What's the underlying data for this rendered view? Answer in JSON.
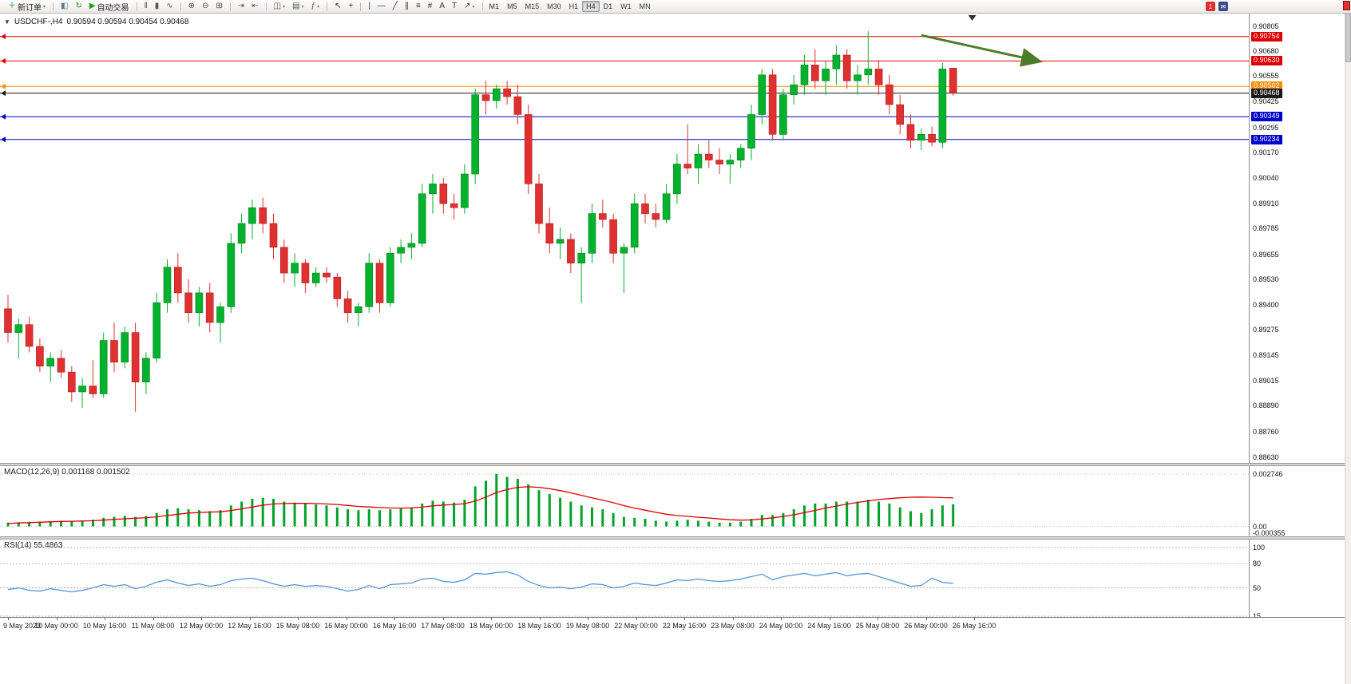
{
  "toolbar": {
    "icon_groups": [
      {
        "items": [
          {
            "name": "new-order-button",
            "glyph": "＋",
            "color": "#18a018",
            "label": "新订单",
            "dropdown": true
          }
        ]
      },
      {
        "items": [
          {
            "name": "market-watch-icon",
            "glyph": "◧",
            "color": "#667788"
          },
          {
            "name": "strategy-tester-icon",
            "glyph": "↻",
            "color": "#1f8f1f"
          },
          {
            "name": "autotrading-button",
            "glyph": "▶",
            "color": "#18a018",
            "label": "自动交易"
          }
        ]
      },
      {
        "items": [
          {
            "name": "bar-chart-button",
            "glyph": "‖",
            "color": "#555555"
          },
          {
            "name": "candlestick-chart-button",
            "glyph": "▮",
            "color": "#555555"
          },
          {
            "name": "line-chart-button",
            "glyph": "∿",
            "color": "#555555"
          }
        ]
      },
      {
        "items": [
          {
            "name": "zoom-in-button",
            "glyph": "⊕",
            "color": "#555555"
          },
          {
            "name": "zoom-out-button",
            "glyph": "⊖",
            "color": "#555555"
          },
          {
            "name": "tile-windows-button",
            "glyph": "⊞",
            "color": "#555555"
          }
        ]
      },
      {
        "items": [
          {
            "name": "auto-scroll-button",
            "glyph": "⇥",
            "color": "#555555"
          },
          {
            "name": "chart-shift-button",
            "glyph": "⇤",
            "color": "#555555"
          }
        ]
      },
      {
        "items": [
          {
            "name": "new-chart-button",
            "glyph": "◫",
            "color": "#555555",
            "dropdown": true
          },
          {
            "name": "profiles-button",
            "glyph": "▤",
            "color": "#555555",
            "dropdown": true
          },
          {
            "name": "indicators-button",
            "glyph": "ƒ",
            "color": "#555555",
            "dropdown": true
          }
        ]
      },
      {
        "items": [
          {
            "name": "cursor-button",
            "glyph": "↖",
            "color": "#333333"
          },
          {
            "name": "crosshair-button",
            "glyph": "+",
            "color": "#333333"
          }
        ]
      },
      {
        "items": [
          {
            "name": "vertical-line-button",
            "glyph": "|",
            "color": "#333333"
          },
          {
            "name": "horizontal-line-button",
            "glyph": "—",
            "color": "#333333"
          },
          {
            "name": "trendline-button",
            "glyph": "╱",
            "color": "#333333"
          },
          {
            "name": "channel-button",
            "glyph": "∥",
            "color": "#333333"
          },
          {
            "name": "fibonacci-button",
            "glyph": "≡",
            "color": "#333333"
          },
          {
            "name": "grid-button",
            "glyph": "#",
            "color": "#333333"
          },
          {
            "name": "text-button",
            "glyph": "A",
            "color": "#333333"
          },
          {
            "name": "text-label-button",
            "glyph": "T",
            "color": "#333333"
          },
          {
            "name": "arrows-button",
            "glyph": "↗",
            "color": "#333333",
            "dropdown": true
          }
        ]
      }
    ],
    "timeframes": {
      "items": [
        "M1",
        "M5",
        "M15",
        "M30",
        "H1",
        "H4",
        "D1",
        "W1",
        "MN"
      ],
      "active": "H4"
    },
    "right_icons": [
      {
        "name": "alert-badge",
        "glyph": "1",
        "bg": "#e03030",
        "color": "#ffffff"
      },
      {
        "name": "mailbox-icon",
        "glyph": "✉",
        "bg": "#3a4a8a",
        "color": "#ffffff"
      }
    ]
  },
  "colors": {
    "candle_up": "#00b22c",
    "candle_up_border": "#0a7a22",
    "candle_down": "#e03030",
    "candle_down_border": "#a81f1f",
    "macd_histogram": "#00a22a",
    "macd_signal": "#e00000",
    "rsi_line": "#4f8fd6",
    "arrow_green": "#4e7d28"
  },
  "chart_data": {
    "type": "candlestick",
    "symbol": "USDCHF-",
    "timeframe": "H4",
    "header": {
      "collapse_icon": "▼",
      "symbol": "USDCHF-,H4",
      "quotes": "0.90594 0.90594 0.90454 0.90468"
    },
    "price_axis": {
      "min": 0.8863,
      "max": 0.90805,
      "ticks": [
        "0.90805",
        "0.90680",
        "0.90555",
        "0.90425",
        "0.90295",
        "0.90170",
        "0.90040",
        "0.89910",
        "0.89785",
        "0.89655",
        "0.89530",
        "0.89400",
        "0.89275",
        "0.89145",
        "0.89015",
        "0.88890",
        "0.88760",
        "0.88630"
      ]
    },
    "levels": [
      {
        "name": "resistance-line-1",
        "price": 0.90754,
        "label": "0.90754",
        "color": "#e00000"
      },
      {
        "name": "resistance-line-2",
        "price": 0.9063,
        "label": "0.90630",
        "color": "#e00000"
      },
      {
        "name": "pivot-line",
        "price": 0.90502,
        "label": "0.90502",
        "color": "#ff8c00"
      },
      {
        "name": "bid-price-line",
        "price": 0.90468,
        "label": "0.90468",
        "color": "#1a1a1a"
      },
      {
        "name": "support-line-1",
        "price": 0.90349,
        "label": "0.90349",
        "color": "#0000cc"
      },
      {
        "name": "support-line-2",
        "price": 0.90234,
        "label": "0.90234",
        "color": "#0000cc"
      }
    ],
    "time_labels": [
      "9 May 2023",
      "10 May 00:00",
      "10 May 16:00",
      "11 May 08:00",
      "12 May 00:00",
      "12 May 16:00",
      "15 May 08:00",
      "16 May 00:00",
      "16 May 16:00",
      "17 May 08:00",
      "18 May 00:00",
      "18 May 16:00",
      "19 May 08:00",
      "22 May 00:00",
      "22 May 16:00",
      "23 May 08:00",
      "24 May 00:00",
      "24 May 16:00",
      "25 May 08:00",
      "26 May 00:00",
      "26 May 16:00"
    ],
    "candles": [
      [
        0.8938,
        0.8945,
        0.8921,
        0.8926
      ],
      [
        0.8926,
        0.8933,
        0.8913,
        0.893
      ],
      [
        0.893,
        0.8934,
        0.8916,
        0.8919
      ],
      [
        0.8919,
        0.8923,
        0.8906,
        0.8909
      ],
      [
        0.8909,
        0.8916,
        0.8901,
        0.8913
      ],
      [
        0.8913,
        0.8917,
        0.8903,
        0.8906
      ],
      [
        0.8906,
        0.8909,
        0.8891,
        0.8896
      ],
      [
        0.8896,
        0.8903,
        0.8888,
        0.8899
      ],
      [
        0.8899,
        0.8912,
        0.8893,
        0.8895
      ],
      [
        0.8895,
        0.8926,
        0.8893,
        0.8922
      ],
      [
        0.8922,
        0.8931,
        0.8906,
        0.8911
      ],
      [
        0.8911,
        0.8929,
        0.8908,
        0.8926
      ],
      [
        0.8926,
        0.8931,
        0.8886,
        0.8901
      ],
      [
        0.8901,
        0.8916,
        0.8895,
        0.8913
      ],
      [
        0.8913,
        0.8946,
        0.8911,
        0.8941
      ],
      [
        0.8941,
        0.8963,
        0.8936,
        0.8959
      ],
      [
        0.8959,
        0.8966,
        0.8941,
        0.8946
      ],
      [
        0.8946,
        0.8953,
        0.8931,
        0.8936
      ],
      [
        0.8936,
        0.8949,
        0.8929,
        0.8946
      ],
      [
        0.8946,
        0.8951,
        0.8926,
        0.8931
      ],
      [
        0.8931,
        0.8941,
        0.8921,
        0.8939
      ],
      [
        0.8939,
        0.8976,
        0.8936,
        0.8971
      ],
      [
        0.8971,
        0.8986,
        0.8966,
        0.8981
      ],
      [
        0.8981,
        0.8993,
        0.8973,
        0.8989
      ],
      [
        0.8989,
        0.8994,
        0.8976,
        0.8981
      ],
      [
        0.8981,
        0.8986,
        0.8963,
        0.8969
      ],
      [
        0.8969,
        0.8973,
        0.8951,
        0.8956
      ],
      [
        0.8956,
        0.8966,
        0.8949,
        0.8961
      ],
      [
        0.8961,
        0.8963,
        0.8946,
        0.8951
      ],
      [
        0.8951,
        0.8959,
        0.8949,
        0.8956
      ],
      [
        0.8956,
        0.8959,
        0.8951,
        0.8954
      ],
      [
        0.8954,
        0.8956,
        0.8939,
        0.8943
      ],
      [
        0.8943,
        0.8947,
        0.8931,
        0.8936
      ],
      [
        0.8936,
        0.8941,
        0.8929,
        0.8939
      ],
      [
        0.8939,
        0.8966,
        0.8936,
        0.8961
      ],
      [
        0.8961,
        0.8963,
        0.8936,
        0.8941
      ],
      [
        0.8941,
        0.8969,
        0.8939,
        0.8966
      ],
      [
        0.8966,
        0.8973,
        0.8961,
        0.8969
      ],
      [
        0.8969,
        0.8976,
        0.8963,
        0.8971
      ],
      [
        0.8971,
        0.9001,
        0.8969,
        0.8996
      ],
      [
        0.8996,
        0.9006,
        0.8986,
        0.9001
      ],
      [
        0.9001,
        0.9004,
        0.8986,
        0.8991
      ],
      [
        0.8991,
        0.8996,
        0.8983,
        0.8989
      ],
      [
        0.8989,
        0.9011,
        0.8986,
        0.9006
      ],
      [
        0.9006,
        0.9049,
        0.9001,
        0.9046
      ],
      [
        0.9046,
        0.9053,
        0.9036,
        0.9043
      ],
      [
        0.9043,
        0.9051,
        0.9039,
        0.9049
      ],
      [
        0.9049,
        0.9053,
        0.9041,
        0.9045
      ],
      [
        0.9045,
        0.9051,
        0.9031,
        0.9036
      ],
      [
        0.9036,
        0.9041,
        0.8996,
        0.9001
      ],
      [
        0.9001,
        0.9006,
        0.8976,
        0.8981
      ],
      [
        0.8981,
        0.8989,
        0.8966,
        0.8971
      ],
      [
        0.8971,
        0.8979,
        0.8963,
        0.8973
      ],
      [
        0.8973,
        0.8976,
        0.8956,
        0.8961
      ],
      [
        0.8961,
        0.8969,
        0.8941,
        0.8966
      ],
      [
        0.8966,
        0.8991,
        0.8961,
        0.8986
      ],
      [
        0.8986,
        0.8993,
        0.8979,
        0.8983
      ],
      [
        0.8983,
        0.8986,
        0.8961,
        0.8966
      ],
      [
        0.8966,
        0.8971,
        0.8946,
        0.8969
      ],
      [
        0.8969,
        0.8996,
        0.8966,
        0.8991
      ],
      [
        0.8991,
        0.8996,
        0.8981,
        0.8986
      ],
      [
        0.8986,
        0.8991,
        0.8979,
        0.8983
      ],
      [
        0.8983,
        0.9001,
        0.8981,
        0.8996
      ],
      [
        0.8996,
        0.9016,
        0.8991,
        0.9011
      ],
      [
        0.9011,
        0.9031,
        0.9006,
        0.9009
      ],
      [
        0.9009,
        0.9021,
        0.9001,
        0.9016
      ],
      [
        0.9016,
        0.9023,
        0.9009,
        0.9013
      ],
      [
        0.9013,
        0.9019,
        0.9006,
        0.9011
      ],
      [
        0.9011,
        0.9016,
        0.9001,
        0.9013
      ],
      [
        0.9013,
        0.9021,
        0.9009,
        0.9019
      ],
      [
        0.9019,
        0.9041,
        0.9013,
        0.9036
      ],
      [
        0.9036,
        0.9059,
        0.9031,
        0.9056
      ],
      [
        0.9056,
        0.9059,
        0.9023,
        0.9026
      ],
      [
        0.9026,
        0.9049,
        0.9023,
        0.9046
      ],
      [
        0.9046,
        0.9056,
        0.9041,
        0.9051
      ],
      [
        0.9051,
        0.9066,
        0.9046,
        0.9061
      ],
      [
        0.9061,
        0.9069,
        0.9049,
        0.9053
      ],
      [
        0.9053,
        0.9063,
        0.9046,
        0.9059
      ],
      [
        0.9059,
        0.9071,
        0.9051,
        0.9066
      ],
      [
        0.9066,
        0.9069,
        0.9049,
        0.9053
      ],
      [
        0.9053,
        0.9061,
        0.9046,
        0.9056
      ],
      [
        0.9056,
        0.9078,
        0.9051,
        0.9059
      ],
      [
        0.9059,
        0.9063,
        0.9046,
        0.9051
      ],
      [
        0.9051,
        0.9056,
        0.9036,
        0.9041
      ],
      [
        0.9041,
        0.9046,
        0.9026,
        0.9031
      ],
      [
        0.9031,
        0.9036,
        0.9019,
        0.9023
      ],
      [
        0.9023,
        0.9029,
        0.9018,
        0.9026
      ],
      [
        0.9026,
        0.903,
        0.902,
        0.9022
      ],
      [
        0.9022,
        0.9062,
        0.9019,
        0.9059
      ],
      [
        0.90594,
        0.90594,
        0.90454,
        0.90468
      ]
    ],
    "arrow_annotation": {
      "from": {
        "time_index": 86,
        "price": 0.9076
      },
      "to": {
        "time_index": 97,
        "price": 0.9063
      }
    },
    "top_marker": {
      "time_index": 90.8
    },
    "macd": {
      "label": "MACD(12,26,9)",
      "values": "0.001168 0.001502",
      "scale": {
        "max": 0.002746,
        "min": -0.000355,
        "max_label": "0.002746",
        "zero_label": "0.00",
        "min_label": "-0.000355"
      },
      "histogram": [
        0.0002,
        0.00022,
        0.00024,
        0.00025,
        0.00027,
        0.0003,
        0.00028,
        0.0003,
        0.00035,
        0.00045,
        0.0005,
        0.00055,
        0.0005,
        0.00055,
        0.0007,
        0.0009,
        0.00095,
        0.0009,
        0.00085,
        0.0008,
        0.00085,
        0.0011,
        0.0013,
        0.00145,
        0.0015,
        0.00145,
        0.0013,
        0.00125,
        0.0012,
        0.00115,
        0.0011,
        0.001,
        0.0009,
        0.00085,
        0.0009,
        0.00085,
        0.0009,
        0.00095,
        0.001,
        0.0012,
        0.00135,
        0.0013,
        0.00125,
        0.0014,
        0.0021,
        0.0024,
        0.00275,
        0.0026,
        0.0025,
        0.0022,
        0.0019,
        0.0017,
        0.0015,
        0.0013,
        0.0011,
        0.001,
        0.0009,
        0.0007,
        0.0005,
        0.00045,
        0.0004,
        0.0003,
        0.00025,
        0.0003,
        0.00035,
        0.0003,
        0.00025,
        0.0002,
        0.0002,
        0.00025,
        0.0004,
        0.0006,
        0.0006,
        0.0007,
        0.0009,
        0.0011,
        0.0012,
        0.0012,
        0.0013,
        0.0013,
        0.0013,
        0.0014,
        0.0013,
        0.0012,
        0.001,
        0.0008,
        0.0007,
        0.0009,
        0.0011,
        0.001168
      ],
      "signal": [
        0.00015,
        0.00018,
        0.0002,
        0.00022,
        0.00024,
        0.00026,
        0.00027,
        0.00028,
        0.0003,
        0.00033,
        0.00037,
        0.0004,
        0.00043,
        0.00046,
        0.0005,
        0.00057,
        0.00064,
        0.0007,
        0.00073,
        0.00075,
        0.00077,
        0.00083,
        0.00092,
        0.00102,
        0.00111,
        0.00118,
        0.0012,
        0.00121,
        0.00121,
        0.0012,
        0.00118,
        0.00115,
        0.0011,
        0.00105,
        0.00102,
        0.00099,
        0.00097,
        0.00096,
        0.00097,
        0.00101,
        0.00108,
        0.00112,
        0.00115,
        0.00119,
        0.00133,
        0.00154,
        0.00178,
        0.00194,
        0.00205,
        0.00208,
        0.00205,
        0.00198,
        0.00188,
        0.00176,
        0.00163,
        0.0015,
        0.00138,
        0.00124,
        0.00109,
        0.00096,
        0.00085,
        0.00074,
        0.00064,
        0.00057,
        0.00053,
        0.00048,
        0.00044,
        0.00039,
        0.00035,
        0.00033,
        0.00034,
        0.00039,
        0.00045,
        0.00052,
        0.00061,
        0.00072,
        0.00084,
        0.00096,
        0.00107,
        0.00117,
        0.00126,
        0.00134,
        0.00141,
        0.00146,
        0.0015,
        0.00153,
        0.00154,
        0.00153,
        0.00151,
        0.001502
      ]
    },
    "rsi": {
      "label": "RSI(14)",
      "value": "55.4863",
      "levels": [
        {
          "label": "100",
          "value": 100
        },
        {
          "label": "80",
          "value": 80
        },
        {
          "label": "50",
          "value": 50
        },
        {
          "label": "15",
          "value": 15
        }
      ],
      "line": [
        48,
        50,
        47,
        46,
        49,
        47,
        45,
        47,
        50,
        54,
        52,
        54,
        49,
        52,
        57,
        60,
        56,
        53,
        55,
        52,
        54,
        59,
        61,
        62,
        59,
        55,
        52,
        54,
        52,
        53,
        52,
        49,
        46,
        48,
        53,
        49,
        54,
        55,
        56,
        61,
        62,
        58,
        57,
        60,
        68,
        67,
        69,
        70,
        66,
        58,
        53,
        50,
        51,
        49,
        51,
        55,
        54,
        50,
        52,
        56,
        54,
        53,
        56,
        60,
        59,
        61,
        59,
        58,
        59,
        61,
        64,
        67,
        60,
        64,
        66,
        68,
        65,
        67,
        69,
        65,
        67,
        68,
        64,
        60,
        56,
        52,
        53,
        62,
        57,
        55.4863
      ]
    }
  }
}
